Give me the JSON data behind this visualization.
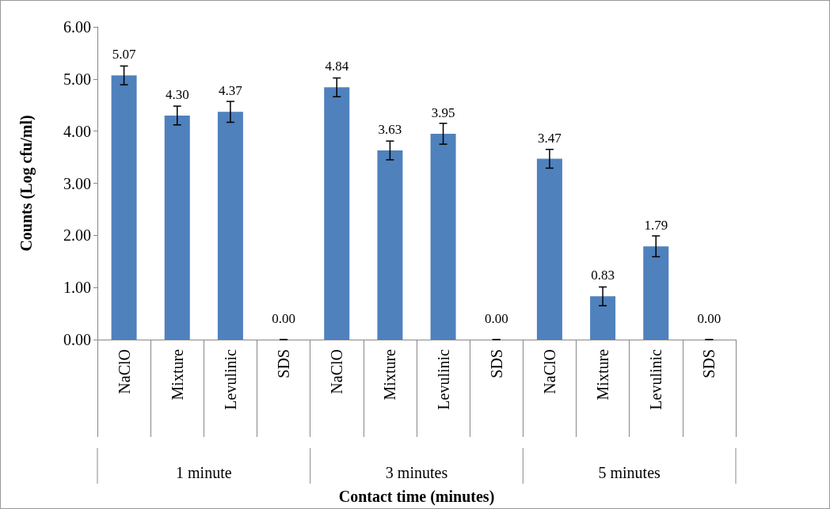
{
  "chart_data": {
    "type": "bar",
    "xlabel": "Contact time (minutes)",
    "ylabel": "Counts (Log cfu/ml)",
    "categories": [
      "NaClO",
      "Mixture",
      "Levulinic",
      "SDS",
      "NaClO",
      "Mixture",
      "Levulinic",
      "SDS",
      "NaClO",
      "Mixture",
      "Levulinic",
      "SDS"
    ],
    "series": [
      {
        "color": "#4f81bd",
        "values": [
          5.07,
          4.3,
          4.37,
          0.0,
          4.84,
          3.63,
          3.95,
          0.0,
          3.47,
          0.83,
          1.79,
          0.0
        ],
        "errors": [
          0.18,
          0.18,
          0.2,
          0,
          0.18,
          0.18,
          0.2,
          0,
          0.18,
          0.18,
          0.2,
          0
        ],
        "value_labels": [
          "5.07",
          "4.30",
          "4.37",
          "0.00",
          "4.84",
          "3.63",
          "3.95",
          "0.00",
          "3.47",
          "0.83",
          "1.79",
          "0.00"
        ]
      }
    ],
    "ylim": [
      0,
      6
    ],
    "yticks": [
      {
        "value": 0,
        "label": "0.00"
      },
      {
        "value": 1,
        "label": "1.00"
      },
      {
        "value": 2,
        "label": "2.00"
      },
      {
        "value": 3,
        "label": "3.00"
      },
      {
        "value": 4,
        "label": "4.00"
      },
      {
        "value": 5,
        "label": "5.00"
      },
      {
        "value": 6,
        "label": "6.00"
      }
    ],
    "annotations": [
      "1 minute",
      "3 minutes",
      "5 minutes"
    ]
  }
}
